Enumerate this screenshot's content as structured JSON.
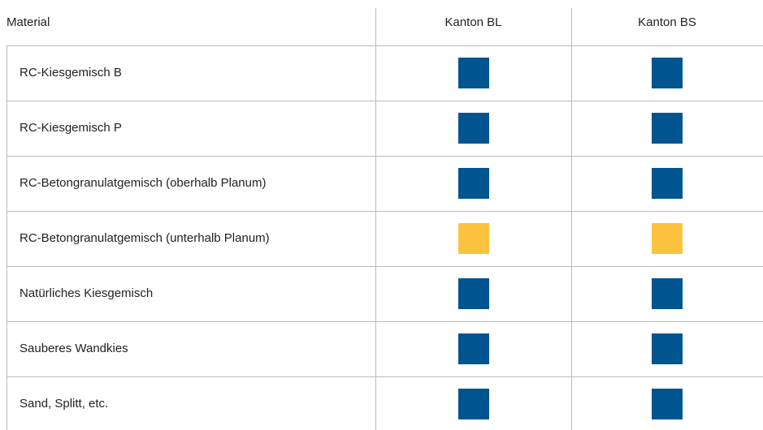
{
  "table": {
    "header": [
      "Material",
      "Kanton BL",
      "Kanton BS"
    ],
    "rows": [
      {
        "material": "RC-Kiesgemisch B",
        "colors": [
          "#00548f",
          "#00548f"
        ]
      },
      {
        "material": "RC-Kiesgemisch P",
        "colors": [
          "#00548f",
          "#00548f"
        ]
      },
      {
        "material": "RC-Betongranulatgemisch (oberhalb Planum)",
        "colors": [
          "#00548f",
          "#00548f"
        ]
      },
      {
        "material": "RC-Betongranulatgemisch (unterhalb Planum)",
        "colors": [
          "#fdc33e",
          "#fdc33e"
        ]
      },
      {
        "material": "Natürliches Kiesgemisch",
        "colors": [
          "#00548f",
          "#00548f"
        ]
      },
      {
        "material": "Sauberes Wandkies",
        "colors": [
          "#00548f",
          "#00548f"
        ]
      },
      {
        "material": "Sand, Splitt, etc.",
        "colors": [
          "#00548f",
          "#00548f"
        ]
      }
    ]
  }
}
